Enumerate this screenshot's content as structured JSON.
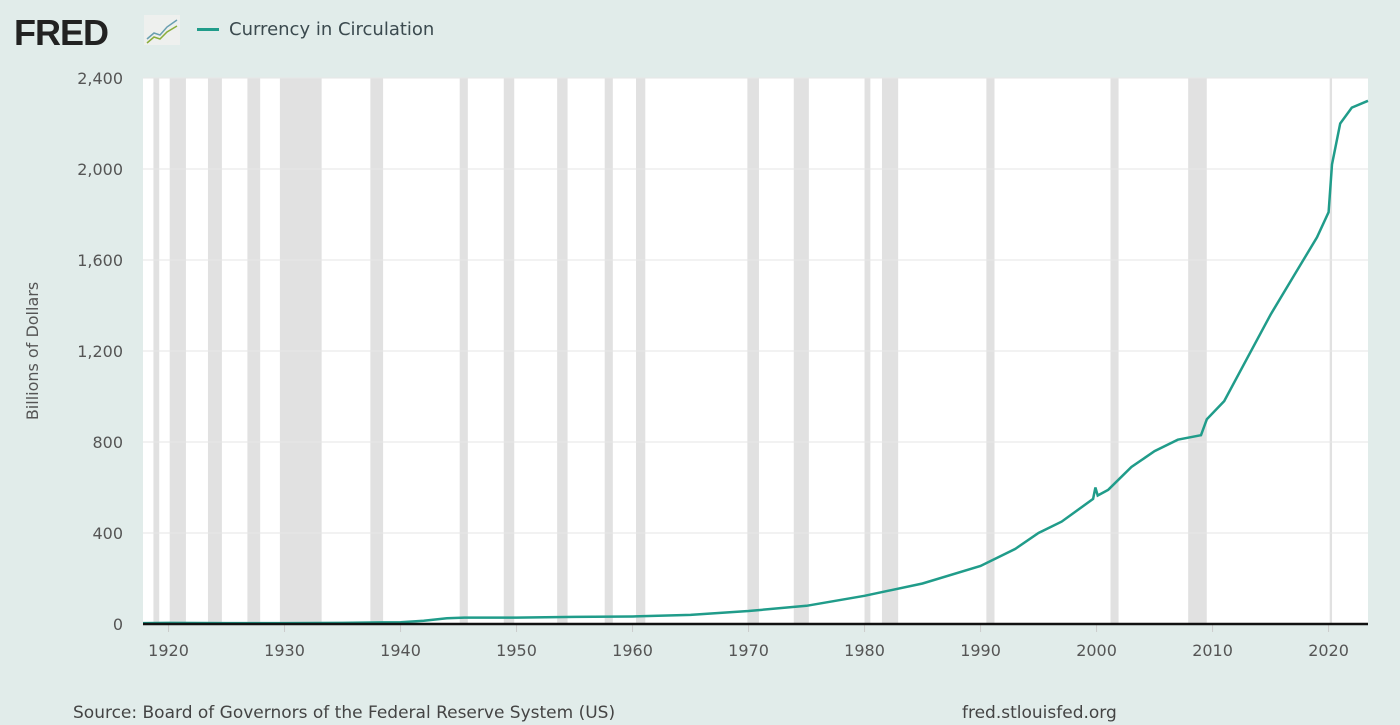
{
  "header": {
    "logo": "FRED",
    "legend_label": "Currency in Circulation"
  },
  "footer": {
    "source": "Source: Board of Governors of the Federal Reserve System (US)",
    "url": "fred.stlouisfed.org"
  },
  "colors": {
    "series": "#209c8a",
    "recession": "#e1e1e1",
    "background": "#e1ecea"
  },
  "chart_data": {
    "type": "line",
    "title": "Currency in Circulation",
    "xlabel": "",
    "ylabel": "Billions of Dollars",
    "xlim": [
      1917.8,
      2023.4
    ],
    "ylim": [
      0,
      2400
    ],
    "xticks": [
      1920,
      1930,
      1940,
      1950,
      1960,
      1970,
      1980,
      1990,
      2000,
      2010,
      2020
    ],
    "yticks": [
      0,
      400,
      800,
      1200,
      1600,
      2000,
      2400
    ],
    "ytick_labels": [
      "0",
      "400",
      "800",
      "1,200",
      "1,600",
      "2,000",
      "2,400"
    ],
    "recessions": [
      [
        1918.7,
        1919.2
      ],
      [
        1920.1,
        1921.5
      ],
      [
        1923.4,
        1924.6
      ],
      [
        1926.8,
        1927.9
      ],
      [
        1929.6,
        1933.2
      ],
      [
        1937.4,
        1938.5
      ],
      [
        1945.1,
        1945.8
      ],
      [
        1948.9,
        1949.8
      ],
      [
        1953.5,
        1954.4
      ],
      [
        1957.6,
        1958.3
      ],
      [
        1960.3,
        1961.1
      ],
      [
        1969.9,
        1970.9
      ],
      [
        1973.9,
        1975.2
      ],
      [
        1980.0,
        1980.5
      ],
      [
        1981.5,
        1982.9
      ],
      [
        1990.5,
        1991.2
      ],
      [
        2001.2,
        2001.9
      ],
      [
        2007.9,
        2009.5
      ],
      [
        2020.1,
        2020.3
      ]
    ],
    "series": [
      {
        "name": "Currency in Circulation",
        "x": [
          1917.8,
          1920,
          1925,
          1930,
          1935,
          1940,
          1942,
          1944,
          1945.5,
          1950,
          1955,
          1960,
          1965,
          1970,
          1975,
          1980,
          1985,
          1990,
          1993,
          1995,
          1997,
          1999.7,
          1999.9,
          2000.1,
          2001,
          2003,
          2005,
          2007,
          2009,
          2009.5,
          2011,
          2013,
          2015,
          2017,
          2019,
          2020.0,
          2020.3,
          2021,
          2022,
          2023.4
        ],
        "values": [
          4,
          5,
          4,
          4,
          5,
          8,
          14,
          25,
          28,
          28,
          31,
          33,
          40,
          57,
          80,
          124,
          178,
          255,
          330,
          400,
          450,
          550,
          600,
          565,
          590,
          690,
          760,
          810,
          830,
          900,
          980,
          1170,
          1360,
          1530,
          1700,
          1810,
          2020,
          2200,
          2270,
          2300
        ]
      }
    ]
  }
}
